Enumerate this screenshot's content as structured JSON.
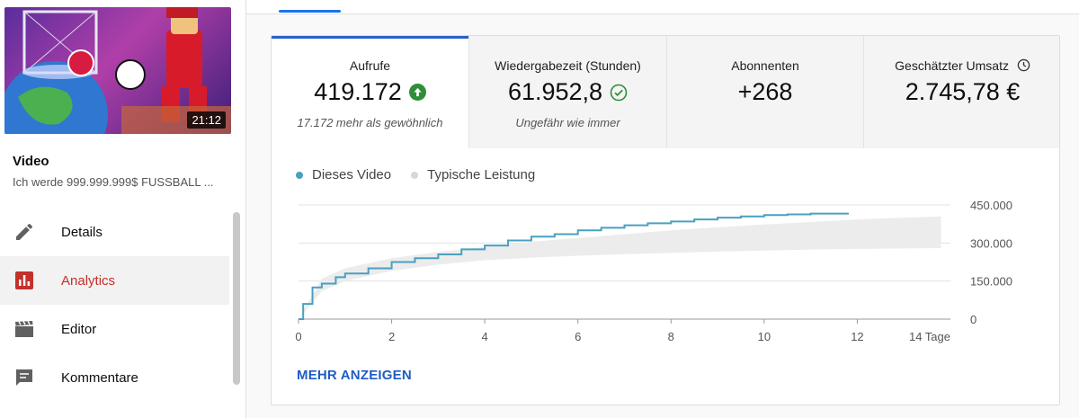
{
  "sidebar": {
    "thumbnail_duration": "21:12",
    "video_label": "Video",
    "video_title": "Ich werde 999.999.999$ FUSSBALL ...",
    "items": [
      {
        "label": "Details",
        "icon": "pencil-icon"
      },
      {
        "label": "Analytics",
        "icon": "analytics-icon",
        "active": true
      },
      {
        "label": "Editor",
        "icon": "clapperboard-icon"
      },
      {
        "label": "Kommentare",
        "icon": "comment-icon"
      }
    ]
  },
  "metrics": [
    {
      "label": "Aufrufe",
      "value": "419.172",
      "sub": "17.172 mehr als gewöhnlich",
      "status": "up-arrow-badge"
    },
    {
      "label": "Wiedergabezeit (Stunden)",
      "value": "61.952,8",
      "sub": "Ungefähr wie immer",
      "status": "check-circle"
    },
    {
      "label": "Abonnenten",
      "value": "+268",
      "sub": ""
    },
    {
      "label": "Geschätzter Umsatz",
      "value": "2.745,78 €",
      "sub": "",
      "status": "clock-icon"
    }
  ],
  "colors": {
    "accent": "#2762c8",
    "series": "#4aa0c0",
    "band": "#e9e9e9",
    "active_nav": "#c4302b",
    "up": "#2e8f38"
  },
  "chart_data": {
    "type": "line",
    "legend": [
      "Dieses Video",
      "Typische Leistung"
    ],
    "x_ticks": [
      "0",
      "2",
      "4",
      "6",
      "8",
      "10",
      "12",
      "14 Tage"
    ],
    "y_ticks": [
      "450.000",
      "300.000",
      "150.000",
      "0"
    ],
    "xlim": [
      0,
      14
    ],
    "ylim": [
      0,
      450000
    ],
    "series": [
      {
        "name": "Dieses Video",
        "x": [
          0,
          0.1,
          0.3,
          0.5,
          0.8,
          1.0,
          1.5,
          2.0,
          2.5,
          3.0,
          3.5,
          4.0,
          4.5,
          5.0,
          5.5,
          6.0,
          6.5,
          7.0,
          7.5,
          8.0,
          8.5,
          9.0,
          9.5,
          10.0,
          10.5,
          11.0,
          11.8
        ],
        "y": [
          0,
          60000,
          125000,
          140000,
          165000,
          180000,
          200000,
          225000,
          240000,
          255000,
          275000,
          290000,
          310000,
          325000,
          335000,
          350000,
          360000,
          370000,
          378000,
          385000,
          393000,
          400000,
          405000,
          410000,
          413000,
          416000,
          419172
        ]
      },
      {
        "name": "Typische Leistung",
        "x": [
          0,
          0.5,
          1,
          1.5,
          2,
          3,
          4,
          5,
          6,
          7,
          8,
          9,
          10,
          11,
          12,
          13.8
        ],
        "upper": [
          0,
          160000,
          200000,
          220000,
          240000,
          265000,
          285000,
          305000,
          320000,
          335000,
          350000,
          362000,
          373000,
          383000,
          393000,
          405000
        ],
        "lower": [
          0,
          110000,
          150000,
          170000,
          190000,
          215000,
          232000,
          242000,
          250000,
          256000,
          261000,
          266000,
          270000,
          274000,
          277000,
          280000
        ]
      }
    ]
  },
  "more_button": "MEHR ANZEIGEN"
}
